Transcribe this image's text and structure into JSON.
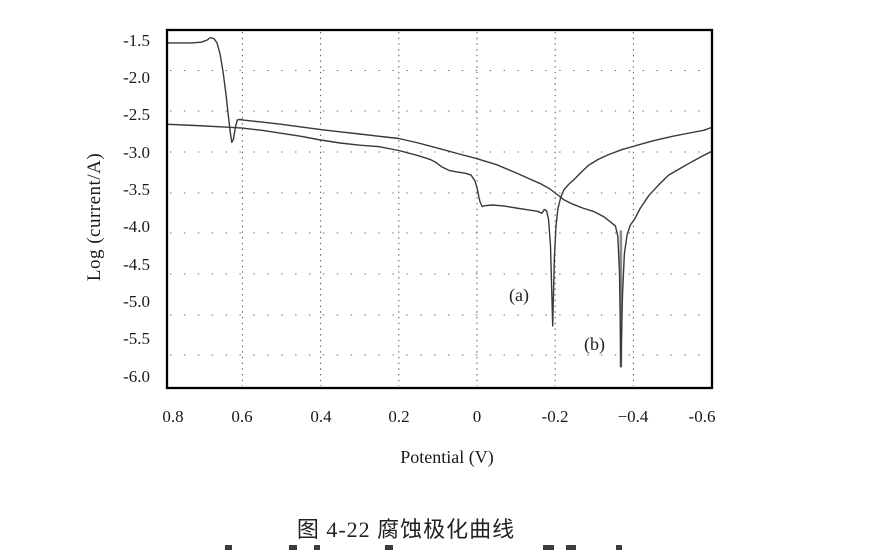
{
  "figure": {
    "caption": "图 4-22  腐蚀极化曲线"
  },
  "chart_data": {
    "type": "line",
    "title": "",
    "xlabel": "Potential (V)",
    "ylabel": "Log (current/A)",
    "x_axis_reversed": true,
    "xlim": [
      0.79,
      -0.6
    ],
    "ylim": [
      -6.15,
      -1.36
    ],
    "grid": "dotted",
    "legend_position": "none",
    "x_ticks": [
      {
        "value": 0.8,
        "label": "0.8"
      },
      {
        "value": 0.6,
        "label": "0.6"
      },
      {
        "value": 0.4,
        "label": "0.4"
      },
      {
        "value": 0.2,
        "label": "0.2"
      },
      {
        "value": 0.0,
        "label": "0"
      },
      {
        "value": -0.2,
        "label": "-0.2"
      },
      {
        "value": -0.4,
        "label": "−0.4"
      },
      {
        "value": -0.6,
        "label": "-0.6"
      }
    ],
    "y_ticks": [
      {
        "value": -1.5,
        "label": "-1.5"
      },
      {
        "value": -2.0,
        "label": "-2.0"
      },
      {
        "value": -2.5,
        "label": "-2.5"
      },
      {
        "value": -3.0,
        "label": "-3.0"
      },
      {
        "value": -3.5,
        "label": "-3.5"
      },
      {
        "value": -4.0,
        "label": "-4.0"
      },
      {
        "value": -4.5,
        "label": "-4.5"
      },
      {
        "value": -5.0,
        "label": "-5.0"
      },
      {
        "value": -5.5,
        "label": "-5.5"
      },
      {
        "value": -6.0,
        "label": "-6.0"
      }
    ],
    "series": [
      {
        "name": "(a)",
        "corrosion_potential_v": -0.19,
        "points": [
          [
            0.793,
            -2.62
          ],
          [
            0.72,
            -2.635
          ],
          [
            0.65,
            -2.655
          ],
          [
            0.6,
            -2.67
          ],
          [
            0.55,
            -2.7
          ],
          [
            0.5,
            -2.74
          ],
          [
            0.45,
            -2.78
          ],
          [
            0.4,
            -2.83
          ],
          [
            0.35,
            -2.87
          ],
          [
            0.3,
            -2.9
          ],
          [
            0.25,
            -2.92
          ],
          [
            0.2,
            -2.97
          ],
          [
            0.15,
            -3.04
          ],
          [
            0.12,
            -3.09
          ],
          [
            0.105,
            -3.13
          ],
          [
            0.09,
            -3.19
          ],
          [
            0.07,
            -3.24
          ],
          [
            0.05,
            -3.26
          ],
          [
            0.03,
            -3.275
          ],
          [
            0.015,
            -3.3
          ],
          [
            0.005,
            -3.38
          ],
          [
            0.0,
            -3.47
          ],
          [
            -0.005,
            -3.6
          ],
          [
            -0.008,
            -3.66
          ],
          [
            -0.013,
            -3.72
          ],
          [
            -0.02,
            -3.71
          ],
          [
            -0.04,
            -3.7
          ],
          [
            -0.07,
            -3.715
          ],
          [
            -0.1,
            -3.74
          ],
          [
            -0.13,
            -3.765
          ],
          [
            -0.155,
            -3.785
          ],
          [
            -0.166,
            -3.81
          ],
          [
            -0.172,
            -3.76
          ],
          [
            -0.178,
            -3.78
          ],
          [
            -0.183,
            -3.9
          ],
          [
            -0.188,
            -4.25
          ],
          [
            -0.1935,
            -5.32
          ],
          [
            -0.198,
            -4.4
          ],
          [
            -0.202,
            -3.98
          ],
          [
            -0.207,
            -3.75
          ],
          [
            -0.214,
            -3.6
          ],
          [
            -0.222,
            -3.5
          ],
          [
            -0.235,
            -3.42
          ],
          [
            -0.248,
            -3.36
          ],
          [
            -0.263,
            -3.28
          ],
          [
            -0.285,
            -3.17
          ],
          [
            -0.31,
            -3.09
          ],
          [
            -0.335,
            -3.03
          ],
          [
            -0.37,
            -2.96
          ],
          [
            -0.41,
            -2.9
          ],
          [
            -0.45,
            -2.84
          ],
          [
            -0.5,
            -2.78
          ],
          [
            -0.55,
            -2.73
          ],
          [
            -0.58,
            -2.7
          ],
          [
            -0.601,
            -2.66
          ]
        ]
      },
      {
        "name": "(b)",
        "corrosion_potential_v": -0.37,
        "points": [
          [
            0.793,
            -1.53
          ],
          [
            0.76,
            -1.53
          ],
          [
            0.73,
            -1.53
          ],
          [
            0.705,
            -1.52
          ],
          [
            0.69,
            -1.49
          ],
          [
            0.682,
            -1.46
          ],
          [
            0.673,
            -1.47
          ],
          [
            0.665,
            -1.53
          ],
          [
            0.657,
            -1.68
          ],
          [
            0.649,
            -1.93
          ],
          [
            0.642,
            -2.22
          ],
          [
            0.636,
            -2.5
          ],
          [
            0.631,
            -2.73
          ],
          [
            0.627,
            -2.86
          ],
          [
            0.623,
            -2.82
          ],
          [
            0.618,
            -2.66
          ],
          [
            0.613,
            -2.56
          ],
          [
            0.607,
            -2.555
          ],
          [
            0.595,
            -2.565
          ],
          [
            0.55,
            -2.59
          ],
          [
            0.5,
            -2.62
          ],
          [
            0.45,
            -2.655
          ],
          [
            0.4,
            -2.69
          ],
          [
            0.35,
            -2.72
          ],
          [
            0.3,
            -2.75
          ],
          [
            0.25,
            -2.78
          ],
          [
            0.2,
            -2.81
          ],
          [
            0.15,
            -2.87
          ],
          [
            0.1,
            -2.94
          ],
          [
            0.05,
            -3.01
          ],
          [
            0.0,
            -3.08
          ],
          [
            -0.05,
            -3.16
          ],
          [
            -0.1,
            -3.27
          ],
          [
            -0.13,
            -3.34
          ],
          [
            -0.16,
            -3.41
          ],
          [
            -0.185,
            -3.48
          ],
          [
            -0.205,
            -3.56
          ],
          [
            -0.222,
            -3.63
          ],
          [
            -0.245,
            -3.69
          ],
          [
            -0.27,
            -3.74
          ],
          [
            -0.3,
            -3.79
          ],
          [
            -0.325,
            -3.86
          ],
          [
            -0.34,
            -3.92
          ],
          [
            -0.354,
            -3.98
          ],
          [
            -0.36,
            -4.12
          ],
          [
            -0.3645,
            -4.6
          ],
          [
            -0.368,
            -5.87
          ],
          [
            -0.372,
            -4.9
          ],
          [
            -0.377,
            -4.35
          ],
          [
            -0.384,
            -4.1
          ],
          [
            -0.392,
            -3.97
          ],
          [
            -0.403,
            -3.89
          ],
          [
            -0.418,
            -3.74
          ],
          [
            -0.44,
            -3.57
          ],
          [
            -0.465,
            -3.43
          ],
          [
            -0.49,
            -3.3
          ],
          [
            -0.52,
            -3.21
          ],
          [
            -0.55,
            -3.12
          ],
          [
            -0.575,
            -3.05
          ],
          [
            -0.601,
            -2.98
          ]
        ]
      }
    ],
    "annotations": [
      {
        "text": "(a)",
        "x": -0.123,
        "y": -4.93
      },
      {
        "text": "(b)",
        "x": -0.315,
        "y": -5.59
      }
    ]
  }
}
